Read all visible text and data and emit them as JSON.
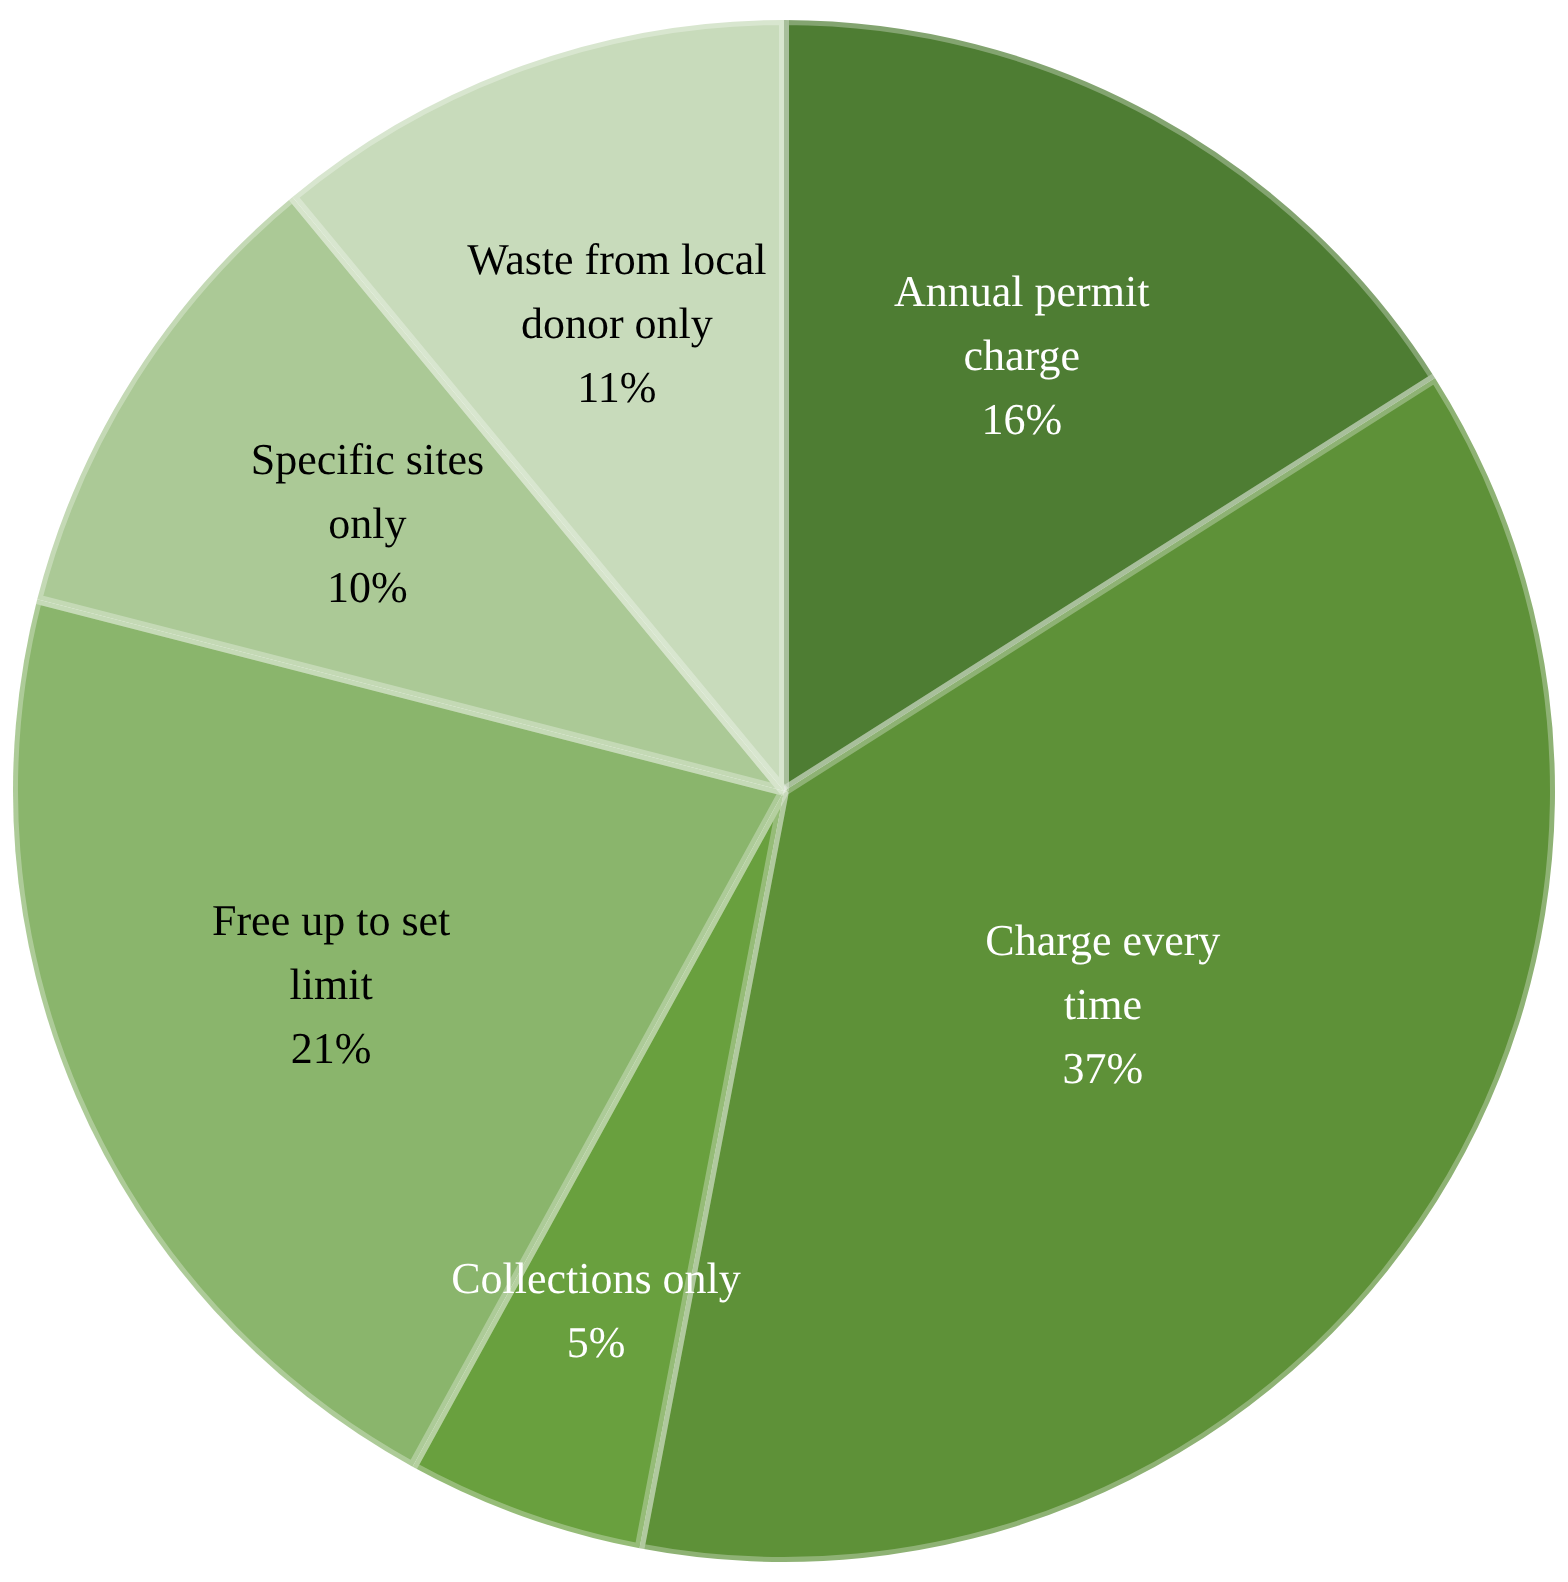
{
  "chart_data": {
    "type": "pie",
    "categories": [
      "Annual permit charge",
      "Charge every time",
      "Collections only",
      "Free up to set limit",
      "Specific sites only",
      "Waste from local donor only"
    ],
    "values": [
      16,
      37,
      5,
      21,
      10,
      11
    ],
    "value_labels": [
      "16%",
      "37%",
      "5%",
      "21%",
      "10%",
      "11%"
    ],
    "colors": [
      "#4e7d33",
      "#5e9138",
      "#69a03e",
      "#8ab56c",
      "#abc996",
      "#c8dbbb"
    ],
    "legend": false
  }
}
